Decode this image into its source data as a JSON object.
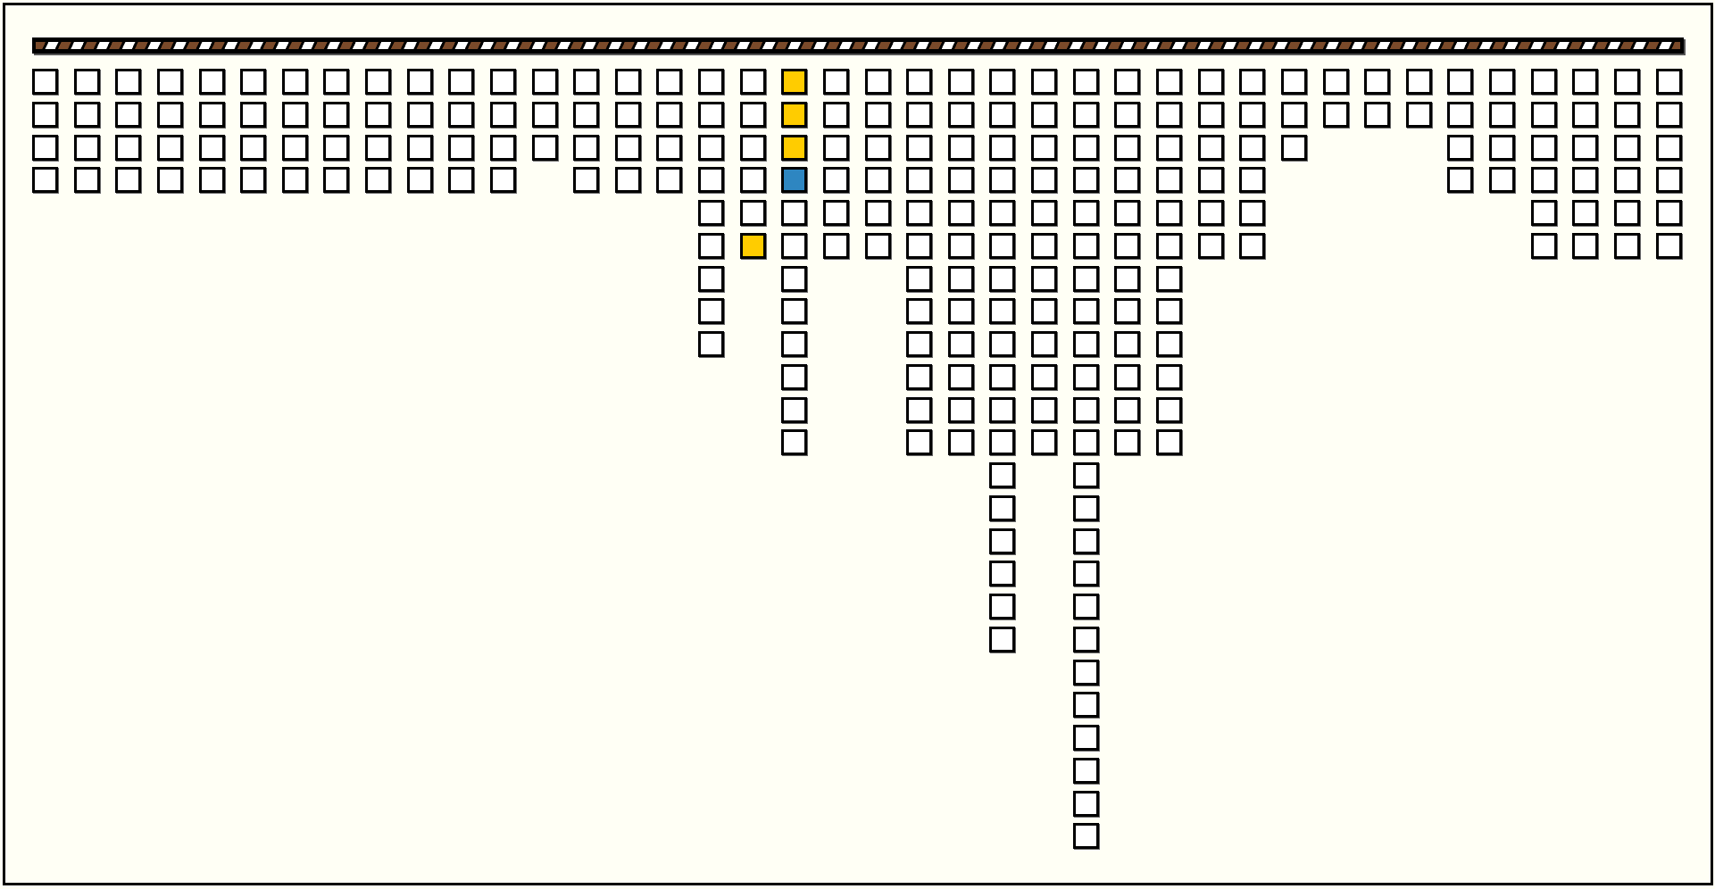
{
  "game": {
    "column_heights": [
      4,
      4,
      4,
      4,
      4,
      4,
      4,
      4,
      4,
      4,
      4,
      4,
      3,
      4,
      4,
      4,
      9,
      6,
      12,
      6,
      6,
      12,
      12,
      18,
      12,
      24,
      12,
      12,
      6,
      6,
      3,
      2,
      2,
      2,
      4,
      4,
      6,
      6,
      6,
      6
    ],
    "highlighted_cells": [
      {
        "column": 19,
        "row": 1,
        "color": "yellow"
      },
      {
        "column": 19,
        "row": 2,
        "color": "yellow"
      },
      {
        "column": 19,
        "row": 3,
        "color": "yellow"
      },
      {
        "column": 19,
        "row": 4,
        "color": "blue"
      },
      {
        "column": 18,
        "row": 6,
        "color": "yellow"
      }
    ]
  },
  "colors": {
    "background": "#fffff5",
    "cell": "#ffffff",
    "border": "#000000",
    "yellow": "#ffcc00",
    "blue": "#2e86c1",
    "bar_stripe": "#7a4a2a"
  }
}
